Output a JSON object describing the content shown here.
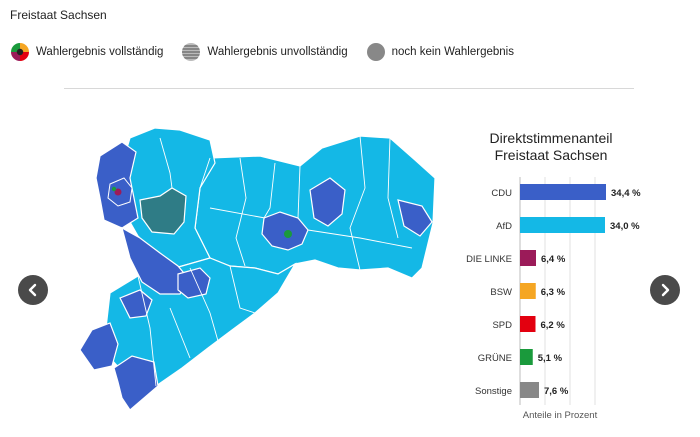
{
  "page_title": "Freistaat Sachsen",
  "legend": [
    {
      "label": "Wahlergebnis vollständig",
      "icon": "pie-multicolor-icon"
    },
    {
      "label": "Wahlergebnis unvollständig",
      "icon": "striped-circle-icon"
    },
    {
      "label": "noch kein Wahlergebnis",
      "icon": "gray-circle-icon"
    }
  ],
  "nav": {
    "prev_icon": "chevron-left-icon",
    "next_icon": "chevron-right-icon"
  },
  "colors": {
    "cdu": "#3a5fc8",
    "afd": "#14b8e6",
    "linke": "#9b1b59",
    "bsw": "#f5a623",
    "spd": "#e3000f",
    "gruene": "#1a9a3c",
    "sonstige": "#888888",
    "unvollstaendig": "#2f7c86"
  },
  "chart_data": {
    "type": "bar",
    "orientation": "horizontal",
    "title_line1": "Direktstimmenanteil",
    "title_line2": "Freistaat Sachsen",
    "xlabel": "Anteile in Prozent",
    "xlim": [
      0,
      40
    ],
    "categories": [
      "CDU",
      "AfD",
      "DIE LINKE",
      "BSW",
      "SPD",
      "GRÜNE",
      "Sonstige"
    ],
    "values": [
      34.4,
      34.0,
      6.4,
      6.3,
      6.2,
      5.1,
      7.6
    ],
    "value_labels": [
      "34,4 %",
      "34,0 %",
      "6,4 %",
      "6,3 %",
      "6,2 %",
      "5,1 %",
      "7,6 %"
    ],
    "bar_colors": [
      "#3a5fc8",
      "#14b8e6",
      "#9b1b59",
      "#f5a623",
      "#e3000f",
      "#1a9a3c",
      "#888888"
    ],
    "grid": true
  }
}
